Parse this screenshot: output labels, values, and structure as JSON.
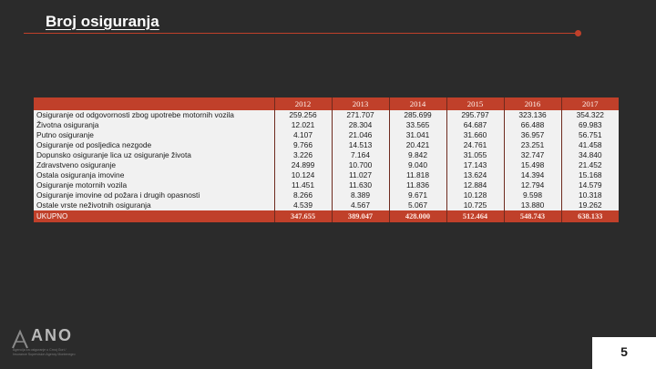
{
  "title": "Broj osiguranja",
  "table": {
    "years": [
      "2012",
      "2013",
      "2014",
      "2015",
      "2016",
      "2017"
    ],
    "rows": [
      {
        "label": "Osiguranje od odgovornosti zbog upotrebe motornih vozila",
        "values": [
          "259.256",
          "271.707",
          "285.699",
          "295.797",
          "323.136",
          "354.322"
        ]
      },
      {
        "label": "Životna osiguranja",
        "values": [
          "12.021",
          "28.304",
          "33.565",
          "64.687",
          "66.488",
          "69.983"
        ]
      },
      {
        "label": "Putno osiguranje",
        "values": [
          "4.107",
          "21.046",
          "31.041",
          "31.660",
          "36.957",
          "56.751"
        ]
      },
      {
        "label": "Osiguranje od posljedica nezgode",
        "values": [
          "9.766",
          "14.513",
          "20.421",
          "24.761",
          "23.251",
          "41.458"
        ]
      },
      {
        "label": "Dopunsko osiguranje lica uz osiguranje života",
        "values": [
          "3.226",
          "7.164",
          "9.842",
          "31.055",
          "32.747",
          "34.840"
        ]
      },
      {
        "label": "Zdravstveno osiguranje",
        "values": [
          "24.899",
          "10.700",
          "9.040",
          "17.143",
          "15.498",
          "21.452"
        ]
      },
      {
        "label": "Ostala osiguranja imovine",
        "values": [
          "10.124",
          "11.027",
          "11.818",
          "13.624",
          "14.394",
          "15.168"
        ]
      },
      {
        "label": "Osiguranje motornih vozila",
        "values": [
          "11.451",
          "11.630",
          "11.836",
          "12.884",
          "12.794",
          "14.579"
        ]
      },
      {
        "label": "Osiguranje imovine od požara i drugih opasnosti",
        "values": [
          "8.266",
          "8.389",
          "9.671",
          "10.128",
          "9.598",
          "10.318"
        ]
      },
      {
        "label": "Ostale vrste neživotnih osiguranja",
        "values": [
          "4.539",
          "4.567",
          "5.067",
          "10.725",
          "13.880",
          "19.262"
        ]
      }
    ],
    "total": {
      "label": "UKUPNO",
      "values": [
        "347.655",
        "389.047",
        "428.000",
        "512.464",
        "548.743",
        "638.133"
      ]
    }
  },
  "logo": {
    "text": "ANO",
    "tagline": "Agencija za osiguranje u Crnoj Gori / Insurance Supervision Agency Montenegro"
  },
  "page_number": "5",
  "colors": {
    "accent": "#c0402a",
    "background": "#2b2b2b",
    "cell": "#f1f1f1"
  }
}
